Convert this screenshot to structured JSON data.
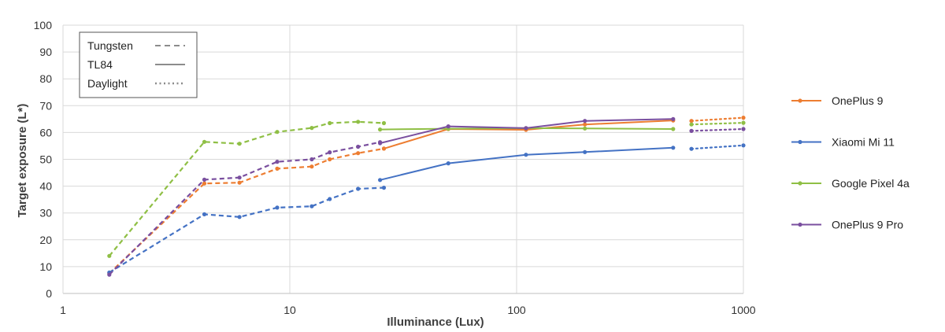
{
  "chart_data": {
    "type": "line",
    "title": "",
    "xlabel": "Illuminance (Lux)",
    "ylabel": "Target exposure (L*)",
    "xscale": "log",
    "xlim": [
      1,
      1000
    ],
    "ylim": [
      0,
      100
    ],
    "xticks": [
      1,
      10,
      100,
      1000
    ],
    "yticks": [
      0,
      10,
      20,
      30,
      40,
      50,
      60,
      70,
      80,
      90,
      100
    ],
    "grid": true,
    "legend_position": "right",
    "style_legend": {
      "position": "top-left",
      "entries": [
        {
          "label": "Tungsten",
          "style": "dashed"
        },
        {
          "label": "TL84",
          "style": "solid"
        },
        {
          "label": "Daylight",
          "style": "dotted"
        }
      ]
    },
    "series": [
      {
        "name": "OnePlus 9",
        "color": "#ED7D31",
        "tungsten": [
          [
            1.6,
            7.5
          ],
          [
            4.2,
            41
          ],
          [
            6,
            41.3
          ],
          [
            8.8,
            46.5
          ],
          [
            12.5,
            47.3
          ],
          [
            15,
            50
          ],
          [
            20,
            52.3
          ],
          [
            26,
            54
          ]
        ],
        "tl84": [
          [
            26,
            54
          ],
          [
            50,
            61.3
          ],
          [
            110,
            61
          ],
          [
            200,
            63
          ],
          [
            490,
            64.5
          ]
        ],
        "daylight": [
          [
            590,
            64.3
          ],
          [
            1000,
            65.5
          ]
        ]
      },
      {
        "name": "Xiaomi Mi 11",
        "color": "#4472C4",
        "tungsten": [
          [
            1.6,
            7.8
          ],
          [
            4.2,
            29.5
          ],
          [
            6,
            28.5
          ],
          [
            8.8,
            32
          ],
          [
            12.5,
            32.5
          ],
          [
            15,
            35.2
          ],
          [
            20,
            39
          ],
          [
            26,
            39.4
          ]
        ],
        "tl84": [
          [
            25,
            42.3
          ],
          [
            50,
            48.5
          ],
          [
            110,
            51.7
          ],
          [
            200,
            52.7
          ],
          [
            490,
            54.3
          ]
        ],
        "daylight": [
          [
            590,
            53.9
          ],
          [
            1000,
            55.2
          ]
        ]
      },
      {
        "name": "Google Pixel 4a",
        "color": "#8FBF45",
        "tungsten": [
          [
            1.6,
            14
          ],
          [
            4.2,
            56.5
          ],
          [
            6,
            55.8
          ],
          [
            8.8,
            60.2
          ],
          [
            12.5,
            61.7
          ],
          [
            15,
            63.5
          ],
          [
            20,
            64
          ],
          [
            26,
            63.5
          ]
        ],
        "tl84": [
          [
            25,
            61.1
          ],
          [
            50,
            61.4
          ],
          [
            110,
            61.6
          ],
          [
            200,
            61.5
          ],
          [
            490,
            61.3
          ]
        ],
        "daylight": [
          [
            590,
            63
          ],
          [
            1000,
            63.6
          ]
        ]
      },
      {
        "name": "OnePlus 9 Pro",
        "color": "#7A4F9F",
        "tungsten": [
          [
            1.6,
            7
          ],
          [
            4.2,
            42.4
          ],
          [
            6,
            43.2
          ],
          [
            8.8,
            49.1
          ],
          [
            12.5,
            50
          ],
          [
            15,
            52.6
          ],
          [
            20,
            54.7
          ],
          [
            25,
            56.4
          ]
        ],
        "tl84": [
          [
            25,
            56
          ],
          [
            50,
            62.3
          ],
          [
            110,
            61.6
          ],
          [
            200,
            64.3
          ],
          [
            490,
            65
          ]
        ],
        "daylight": [
          [
            590,
            60.6
          ],
          [
            1000,
            61.3
          ]
        ]
      }
    ]
  }
}
